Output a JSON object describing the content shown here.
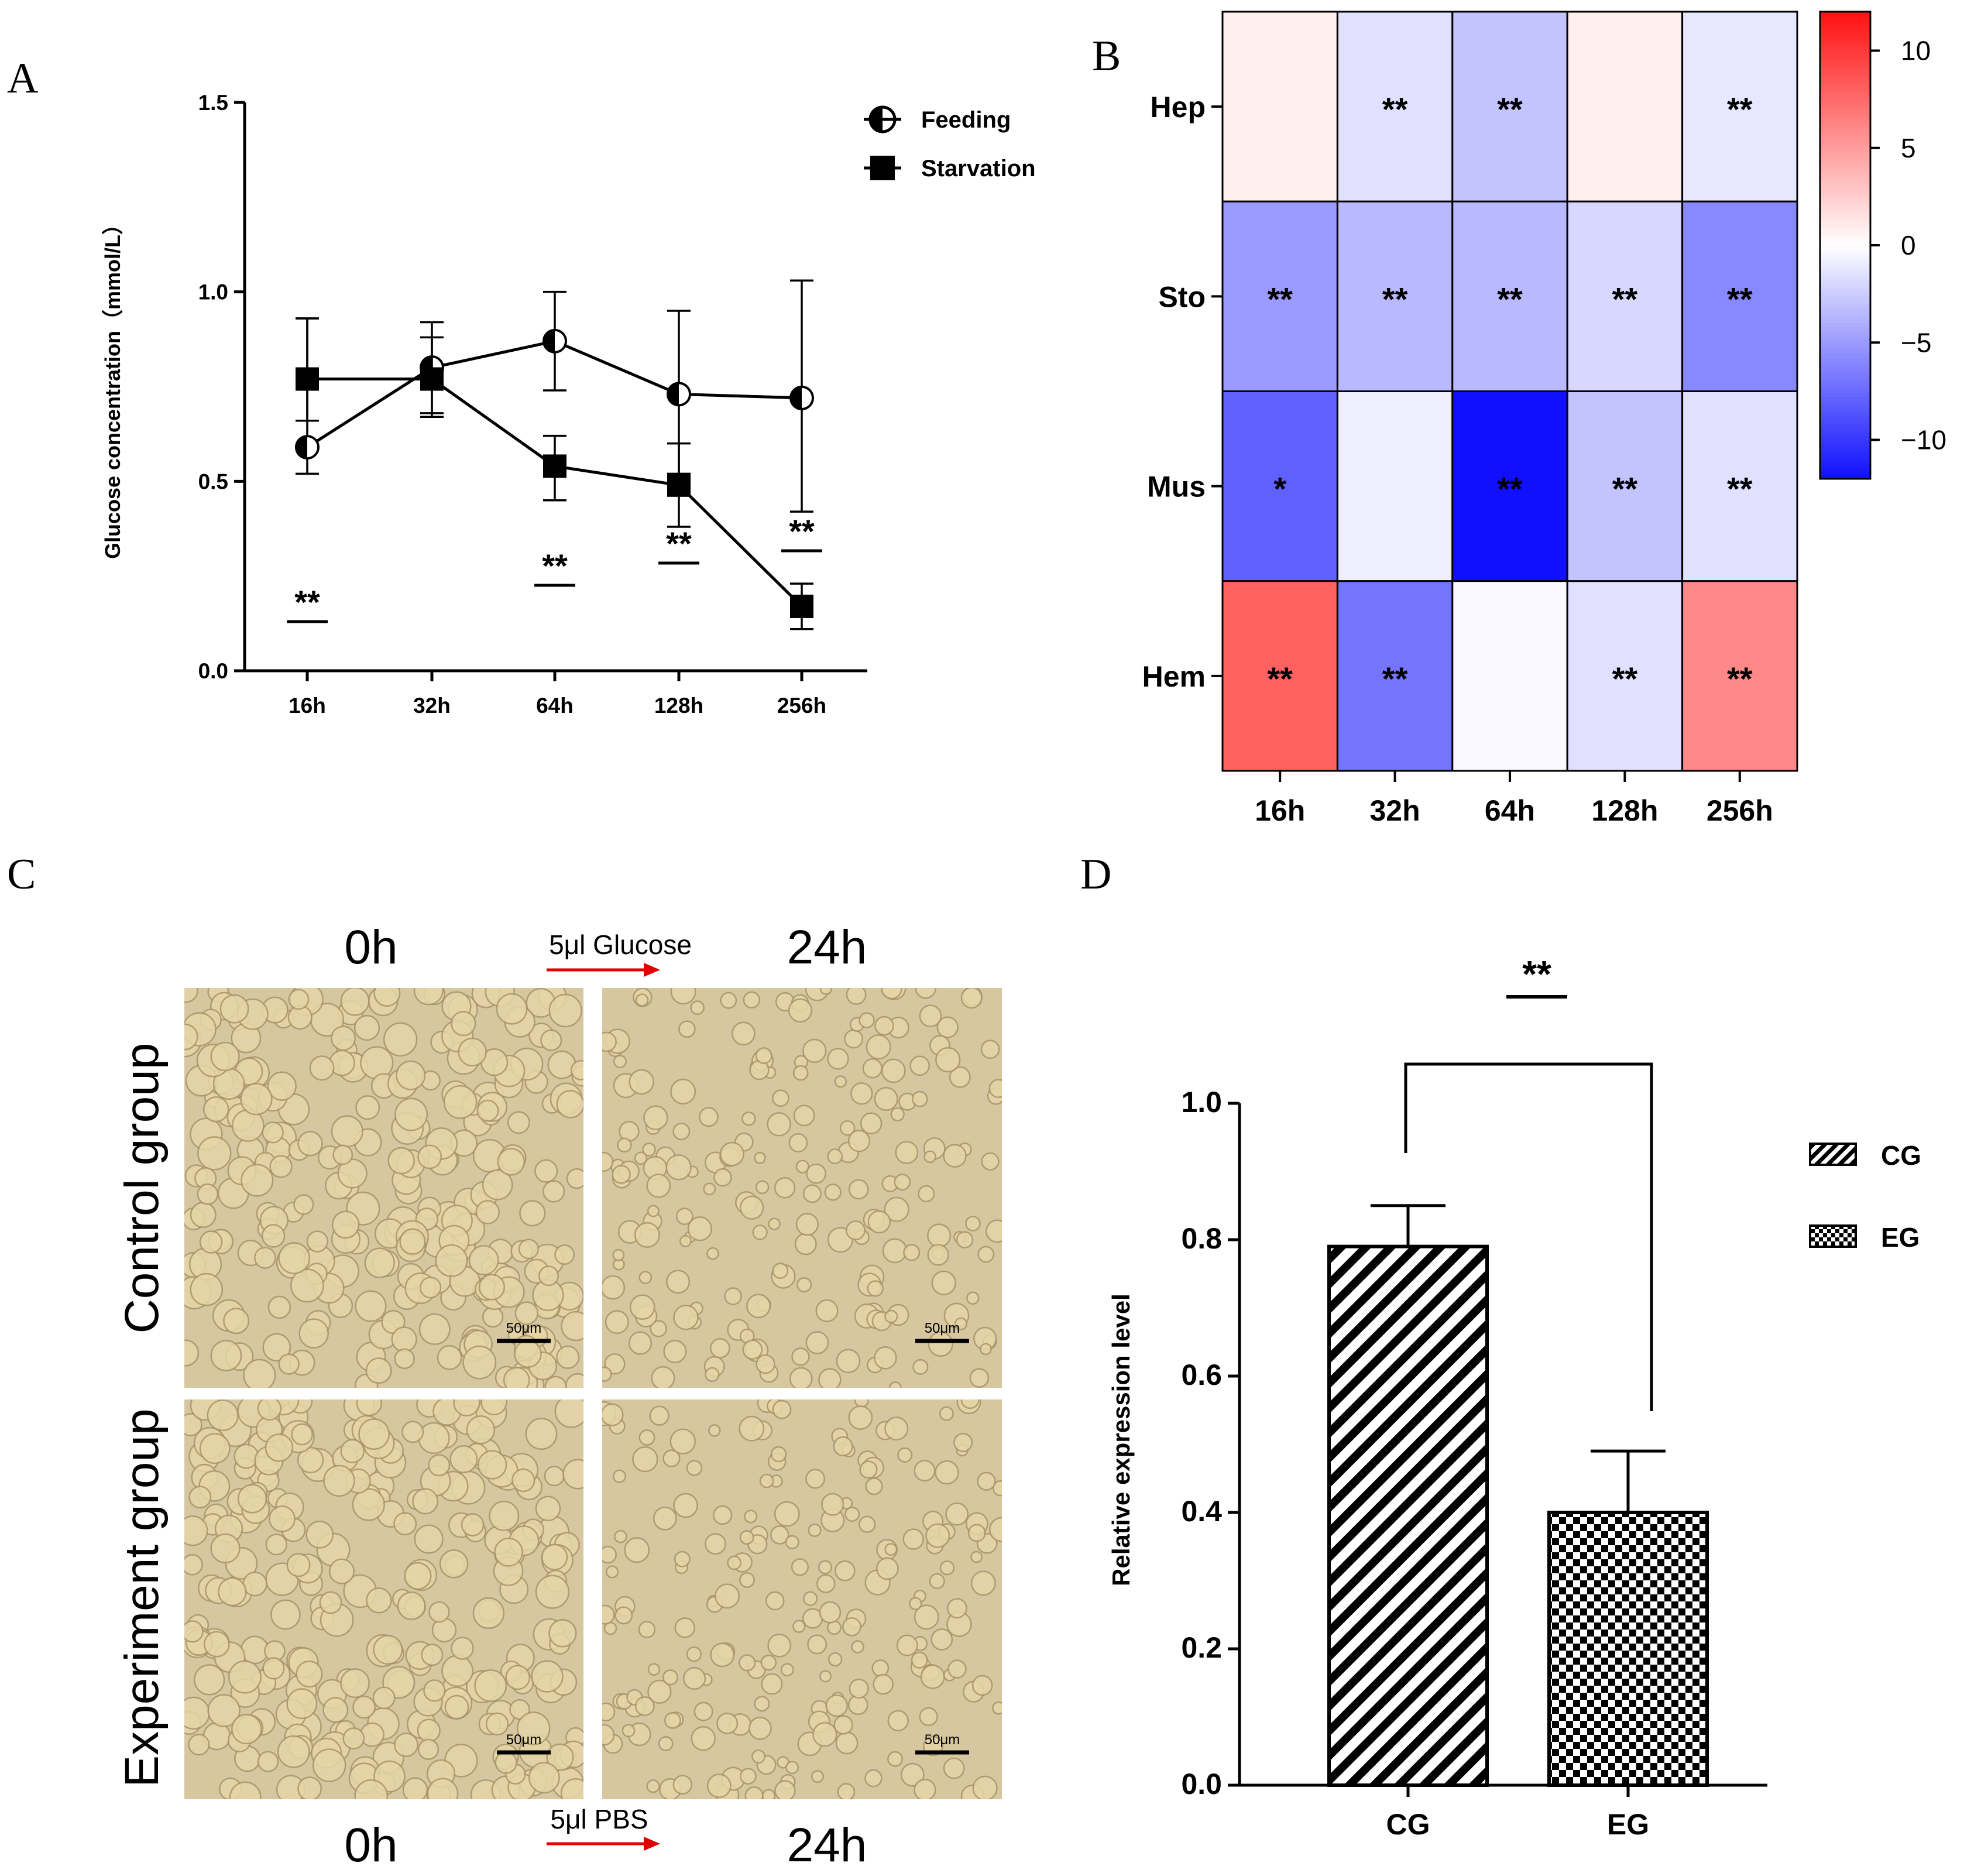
{
  "panels": {
    "A": {
      "label": "A"
    },
    "B": {
      "label": "B"
    },
    "C": {
      "label": "C"
    },
    "D": {
      "label": "D"
    }
  },
  "colors": {
    "hot": "#ff1111",
    "cold": "#1010ff",
    "neutral": "#ffffff",
    "photo_bg": "#d7c7a0",
    "cell_fill": "#e6d5a6",
    "cell_edge": "#a8946a",
    "arrow": "#e00000"
  },
  "chart_data": [
    {
      "id": "A",
      "type": "line",
      "categories": [
        "16h",
        "32h",
        "64h",
        "128h",
        "256h"
      ],
      "ylabel": "Glucose concentration（mmol/L）",
      "xlabel": "",
      "ylim": [
        0,
        1.5
      ],
      "yticks": [
        "0.0",
        "0.5",
        "1.0",
        "1.5"
      ],
      "series": [
        {
          "name": "Feeding",
          "marker": "half-circle",
          "values": [
            0.59,
            0.8,
            0.87,
            0.73,
            0.72
          ],
          "err_high": [
            0.93,
            0.92,
            1.0,
            0.95,
            1.03
          ],
          "err_low": [
            0.52,
            0.68,
            0.74,
            0.52,
            0.42
          ]
        },
        {
          "name": "Starvation",
          "marker": "square",
          "values": [
            0.77,
            0.77,
            0.54,
            0.49,
            0.17
          ],
          "err_high": [
            0.93,
            0.88,
            0.62,
            0.6,
            0.23
          ],
          "err_low": [
            0.66,
            0.67,
            0.45,
            0.38,
            0.11
          ]
        }
      ],
      "significance": [
        "**",
        "",
        "**",
        "**",
        "**"
      ],
      "legend_position": "top-right"
    },
    {
      "id": "B",
      "type": "heatmap",
      "columns": [
        "16h",
        "32h",
        "64h",
        "128h",
        "256h"
      ],
      "rows": [
        "Hep",
        "Sto",
        "Mus",
        "Hem"
      ],
      "values": [
        [
          0.8,
          -1.5,
          -3,
          0.8,
          -1.2
        ],
        [
          -5,
          -3.5,
          -3.5,
          -2,
          -6
        ],
        [
          -8,
          -0.8,
          -12,
          -3,
          -1.5
        ],
        [
          8,
          -7,
          -0.3,
          -1.5,
          6
        ]
      ],
      "stars": [
        [
          "",
          "**",
          "**",
          "",
          "**"
        ],
        [
          "**",
          "**",
          "**",
          "**",
          "**"
        ],
        [
          "*",
          "",
          "**",
          "**",
          "**"
        ],
        [
          "**",
          "**",
          "",
          "**",
          "**"
        ]
      ],
      "color_range": [
        -12,
        12
      ],
      "colorbar_ticks": [
        "10",
        "5",
        "0",
        "−5",
        "−10"
      ],
      "colorbar_tick_values": [
        10,
        5,
        0,
        -5,
        -10
      ]
    },
    {
      "id": "D",
      "type": "bar",
      "categories": [
        "CG",
        "EG"
      ],
      "values": [
        0.79,
        0.4
      ],
      "errors": [
        0.06,
        0.09
      ],
      "patterns": [
        "diagonal-hatch",
        "checkerboard"
      ],
      "ylabel": "Relative expression level",
      "xlabel": "",
      "ylim": [
        0,
        1.0
      ],
      "yticks": [
        "0.0",
        "0.2",
        "0.4",
        "0.6",
        "0.8",
        "1.0"
      ],
      "significance": "**",
      "legend": [
        "CG",
        "EG"
      ],
      "legend_position": "right"
    }
  ],
  "microscopy": {
    "top_left_time": "0h",
    "top_right_time": "24h",
    "bottom_left_time": "0h",
    "bottom_right_time": "24h",
    "top_treatment": "5μl Glucose",
    "bottom_treatment": "5μl PBS",
    "row1_label": "Control group",
    "row2_label": "Experiment group",
    "scalebar": "50μm"
  }
}
